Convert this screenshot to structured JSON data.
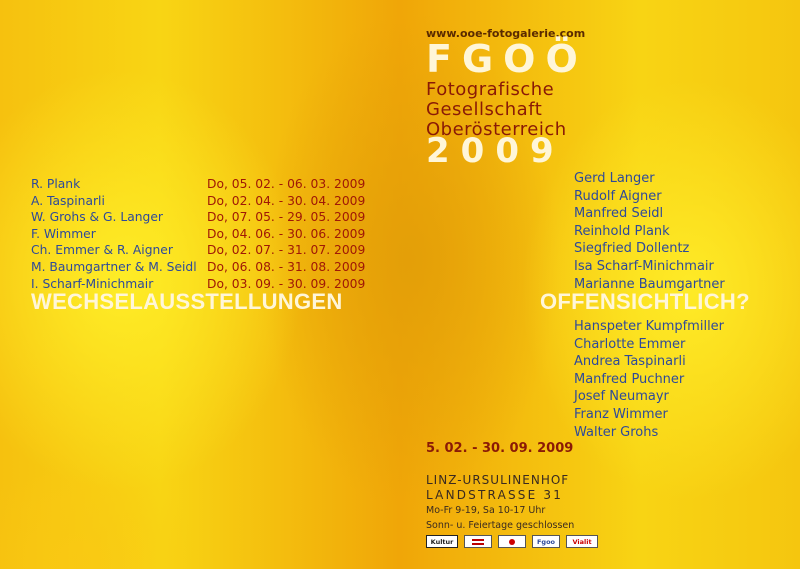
{
  "header": {
    "url": "www.ooe-fotogalerie.com",
    "org_short": "FGOÖ",
    "org_line1": "Fotografische",
    "org_line2": "Gesellschaft",
    "org_line3": "Oberösterreich",
    "year": "2009"
  },
  "schedule": [
    {
      "artist": "R. Plank",
      "dates": "Do, 05. 02. - 06. 03. 2009"
    },
    {
      "artist": "A. Taspinarli",
      "dates": "Do, 02. 04. - 30. 04. 2009"
    },
    {
      "artist": "W. Grohs & G. Langer",
      "dates": "Do, 07. 05. - 29. 05. 2009"
    },
    {
      "artist": "F. Wimmer",
      "dates": "Do, 04. 06. - 30. 06. 2009"
    },
    {
      "artist": "Ch. Emmer & R. Aigner",
      "dates": "Do, 02. 07. - 31. 07. 2009"
    },
    {
      "artist": "M. Baumgartner & M. Seidl",
      "dates": "Do, 06. 08. - 31. 08. 2009"
    },
    {
      "artist": "I. Scharf-Minichmair",
      "dates": "Do, 03. 09. - 30. 09. 2009"
    }
  ],
  "left_heading": "WECHSELAUSSTELLUNGEN",
  "right_heading": "OFFENSICHTLICH?",
  "names_top": [
    "Gerd Langer",
    "Rudolf Aigner",
    "Manfred Seidl",
    "Reinhold Plank",
    "Siegfried Dollentz",
    "Isa Scharf-Minichmair",
    "Marianne Baumgartner"
  ],
  "names_bottom": [
    "Hanspeter Kumpfmiller",
    "Charlotte Emmer",
    "Andrea Taspinarli",
    "Manfred Puchner",
    "Josef Neumayr",
    "Franz Wimmer",
    "Walter Grohs"
  ],
  "footer": {
    "period": "5. 02. - 30. 09. 2009",
    "location_line1": "LINZ-URSULINENHOF",
    "location_line2": "LANDSTRASSE 31",
    "hours": "Mo-Fr 9-19,  Sa 10-17 Uhr",
    "closed": "Sonn- u. Feiertage geschlossen"
  },
  "sponsors": {
    "kultur": "Kultur",
    "fgoo": "Fgoo",
    "vialit": "Vialit"
  },
  "colors": {
    "accent_red": "#8a1a06",
    "accent_blue": "#2e4a9a",
    "title_cream": "#fff6d8"
  }
}
